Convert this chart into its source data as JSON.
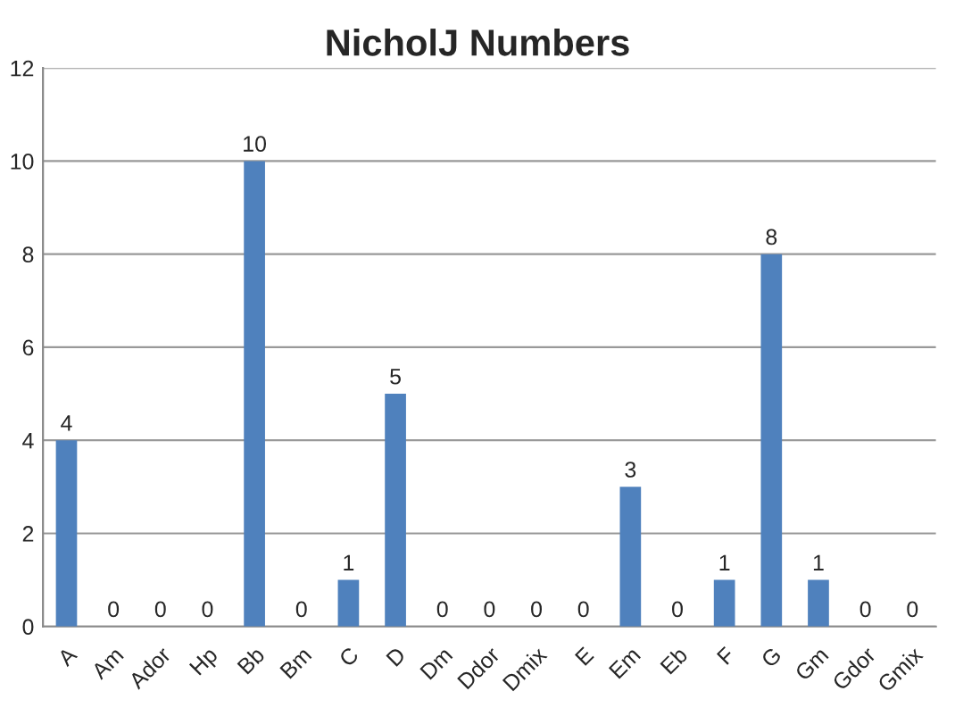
{
  "chart_data": {
    "type": "bar",
    "title": "NicholJ Numbers",
    "categories": [
      "A",
      "Am",
      "Ador",
      "Hp",
      "Bb",
      "Bm",
      "C",
      "D",
      "Dm",
      "Ddor",
      "Dmix",
      "E",
      "Em",
      "Eb",
      "F",
      "G",
      "Gm",
      "Gdor",
      "Gmix"
    ],
    "values": [
      4,
      0,
      0,
      0,
      10,
      0,
      1,
      5,
      0,
      0,
      0,
      0,
      3,
      0,
      1,
      8,
      1,
      0,
      0
    ],
    "color": "#4f81bd",
    "ylim": [
      0,
      12
    ],
    "yticks": [
      0,
      2,
      4,
      6,
      8,
      10,
      12
    ],
    "grid": "y",
    "data_labels": true,
    "legend": false
  }
}
